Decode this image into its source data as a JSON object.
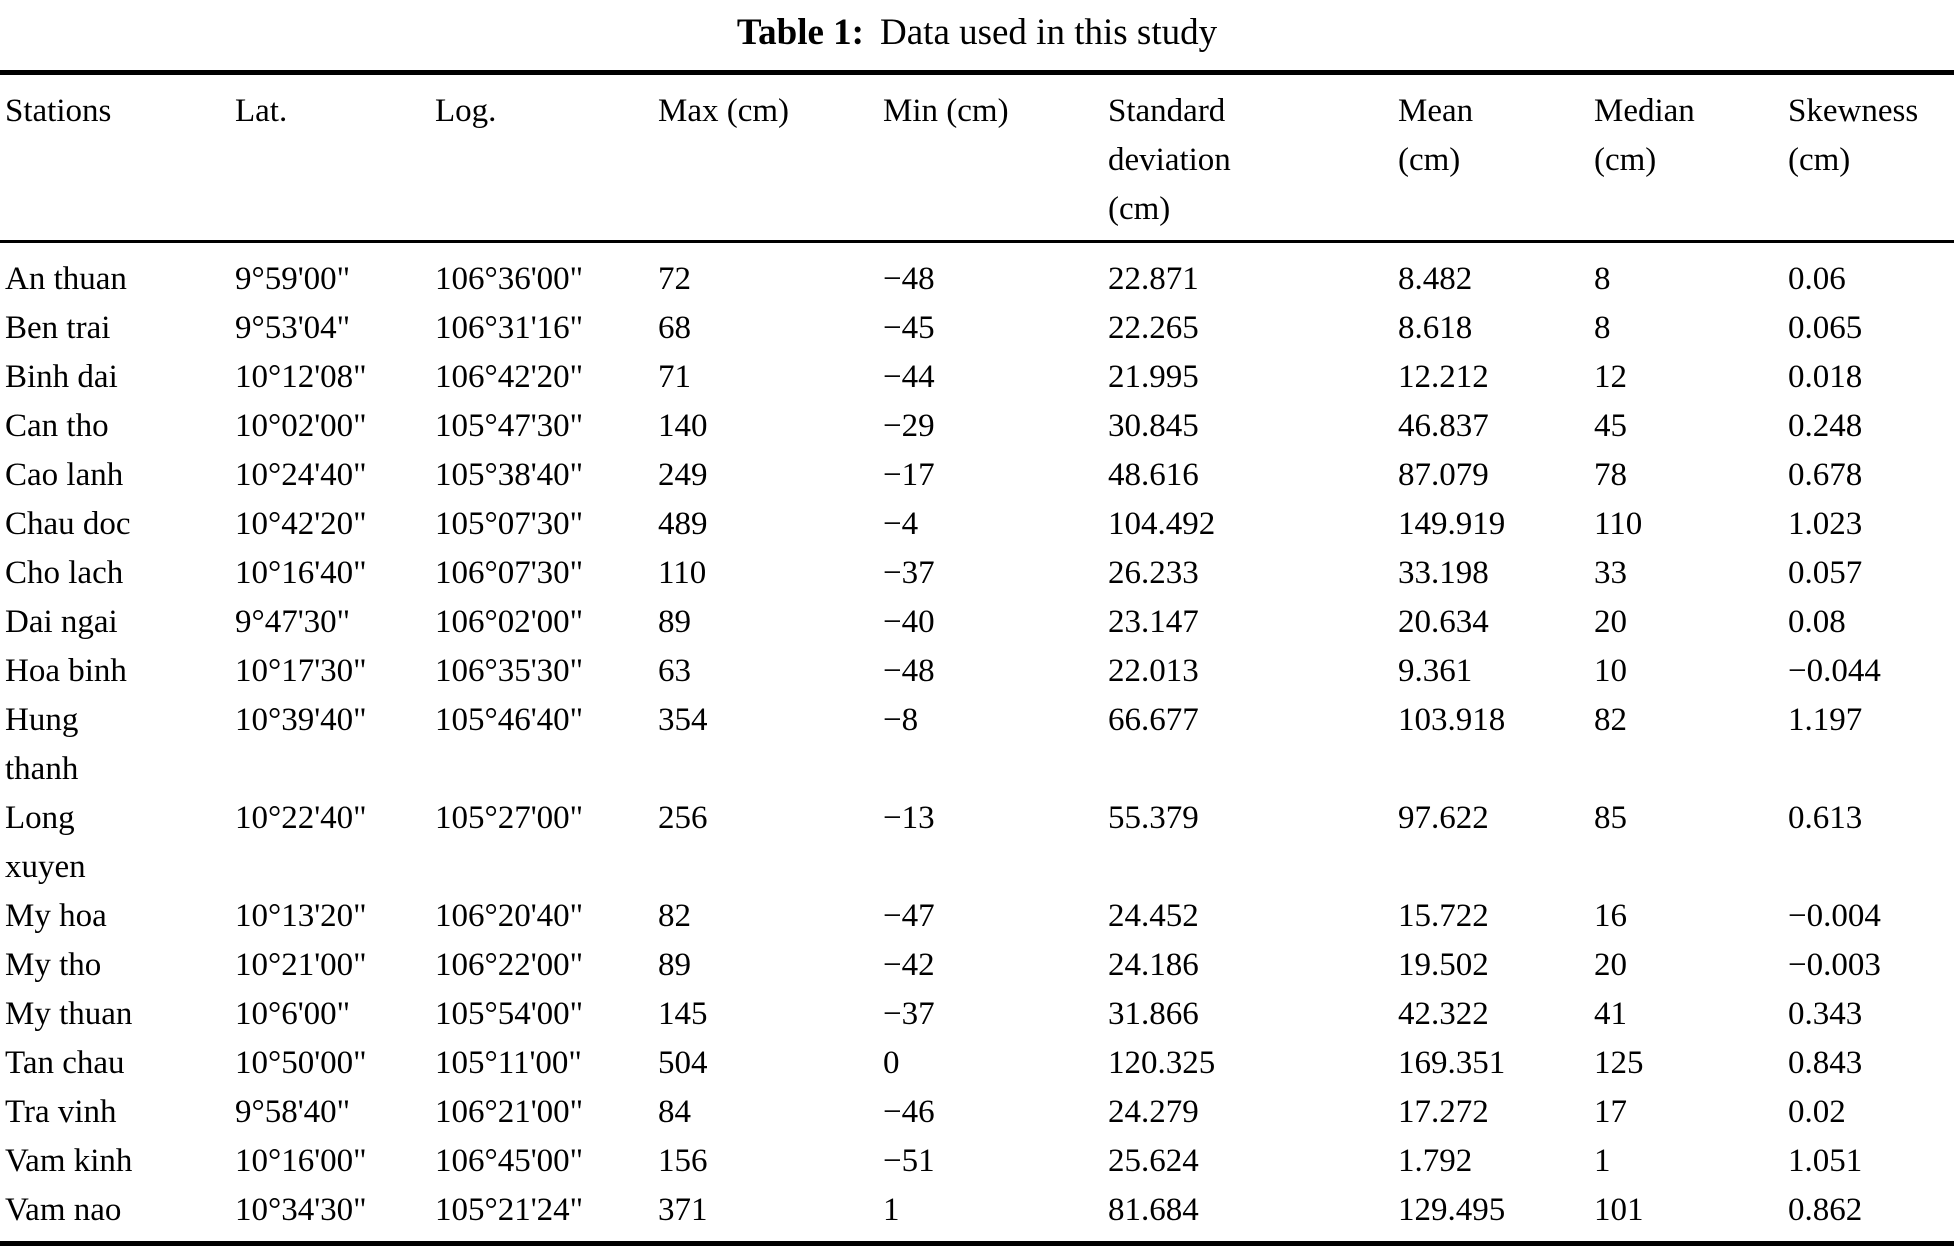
{
  "title": {
    "tag": "Table 1:",
    "text": "Data used in this study"
  },
  "table": {
    "headers": [
      "Stations",
      "Lat.",
      "Log.",
      "Max (cm)",
      "Min (cm)",
      "Standard\ndeviation\n(cm)",
      "Mean\n(cm)",
      "Median\n(cm)",
      "Skewness\n(cm)"
    ],
    "rows": [
      [
        "An thuan",
        "9°59'00\"",
        "106°36'00\"",
        "72",
        "−48",
        "22.871",
        "8.482",
        "8",
        "0.06"
      ],
      [
        "Ben trai",
        "9°53'04\"",
        "106°31'16\"",
        "68",
        "−45",
        "22.265",
        "8.618",
        "8",
        "0.065"
      ],
      [
        "Binh dai",
        "10°12'08\"",
        "106°42'20\"",
        "71",
        "−44",
        "21.995",
        "12.212",
        "12",
        "0.018"
      ],
      [
        "Can tho",
        "10°02'00\"",
        "105°47'30\"",
        "140",
        "−29",
        "30.845",
        "46.837",
        "45",
        "0.248"
      ],
      [
        "Cao lanh",
        "10°24'40\"",
        "105°38'40\"",
        "249",
        "−17",
        "48.616",
        "87.079",
        "78",
        "0.678"
      ],
      [
        "Chau doc",
        "10°42'20\"",
        "105°07'30\"",
        "489",
        "−4",
        "104.492",
        "149.919",
        "110",
        "1.023"
      ],
      [
        "Cho lach",
        "10°16'40\"",
        "106°07'30\"",
        "110",
        "−37",
        "26.233",
        "33.198",
        "33",
        "0.057"
      ],
      [
        "Dai ngai",
        "9°47'30\"",
        "106°02'00\"",
        "89",
        "−40",
        "23.147",
        "20.634",
        "20",
        "0.08"
      ],
      [
        "Hoa binh",
        "10°17'30\"",
        "106°35'30\"",
        "63",
        "−48",
        "22.013",
        "9.361",
        "10",
        "−0.044"
      ],
      [
        "Hung\nthanh",
        "10°39'40\"",
        "105°46'40\"",
        "354",
        "−8",
        "66.677",
        "103.918",
        "82",
        "1.197"
      ],
      [
        "Long\nxuyen",
        "10°22'40\"",
        "105°27'00\"",
        "256",
        "−13",
        "55.379",
        "97.622",
        "85",
        "0.613"
      ],
      [
        "My hoa",
        "10°13'20\"",
        "106°20'40\"",
        "82",
        "−47",
        "24.452",
        "15.722",
        "16",
        "−0.004"
      ],
      [
        "My tho",
        "10°21'00\"",
        "106°22'00\"",
        "89",
        "−42",
        "24.186",
        "19.502",
        "20",
        "−0.003"
      ],
      [
        "My thuan",
        "10°6'00\"",
        "105°54'00\"",
        "145",
        "−37",
        "31.866",
        "42.322",
        "41",
        "0.343"
      ],
      [
        "Tan chau",
        "10°50'00\"",
        "105°11'00\"",
        "504",
        "0",
        "120.325",
        "169.351",
        "125",
        "0.843"
      ],
      [
        "Tra vinh",
        "9°58'40\"",
        "106°21'00\"",
        "84",
        "−46",
        "24.279",
        "17.272",
        "17",
        "0.02"
      ],
      [
        "Vam kinh",
        "10°16'00\"",
        "106°45'00\"",
        "156",
        "−51",
        "25.624",
        "1.792",
        "1",
        "1.051"
      ],
      [
        "Vam nao",
        "10°34'30\"",
        "105°21'24\"",
        "371",
        "1",
        "81.684",
        "129.495",
        "101",
        "0.862"
      ]
    ]
  },
  "chart_data": {
    "type": "table",
    "title": "Table 1: Data used in this study",
    "columns": [
      "Stations",
      "Lat.",
      "Log.",
      "Max (cm)",
      "Min (cm)",
      "Standard deviation (cm)",
      "Mean (cm)",
      "Median (cm)",
      "Skewness (cm)"
    ],
    "rows": [
      [
        "An thuan",
        "9°59'00\"",
        "106°36'00\"",
        72,
        -48,
        22.871,
        8.482,
        8,
        0.06
      ],
      [
        "Ben trai",
        "9°53'04\"",
        "106°31'16\"",
        68,
        -45,
        22.265,
        8.618,
        8,
        0.065
      ],
      [
        "Binh dai",
        "10°12'08\"",
        "106°42'20\"",
        71,
        -44,
        21.995,
        12.212,
        12,
        0.018
      ],
      [
        "Can tho",
        "10°02'00\"",
        "105°47'30\"",
        140,
        -29,
        30.845,
        46.837,
        45,
        0.248
      ],
      [
        "Cao lanh",
        "10°24'40\"",
        "105°38'40\"",
        249,
        -17,
        48.616,
        87.079,
        78,
        0.678
      ],
      [
        "Chau doc",
        "10°42'20\"",
        "105°07'30\"",
        489,
        -4,
        104.492,
        149.919,
        110,
        1.023
      ],
      [
        "Cho lach",
        "10°16'40\"",
        "106°07'30\"",
        110,
        -37,
        26.233,
        33.198,
        33,
        0.057
      ],
      [
        "Dai ngai",
        "9°47'30\"",
        "106°02'00\"",
        89,
        -40,
        23.147,
        20.634,
        20,
        0.08
      ],
      [
        "Hoa binh",
        "10°17'30\"",
        "106°35'30\"",
        63,
        -48,
        22.013,
        9.361,
        10,
        -0.044
      ],
      [
        "Hung thanh",
        "10°39'40\"",
        "105°46'40\"",
        354,
        -8,
        66.677,
        103.918,
        82,
        1.197
      ],
      [
        "Long xuyen",
        "10°22'40\"",
        "105°27'00\"",
        256,
        -13,
        55.379,
        97.622,
        85,
        0.613
      ],
      [
        "My hoa",
        "10°13'20\"",
        "106°20'40\"",
        82,
        -47,
        24.452,
        15.722,
        16,
        -0.004
      ],
      [
        "My tho",
        "10°21'00\"",
        "106°22'00\"",
        89,
        -42,
        24.186,
        19.502,
        20,
        -0.003
      ],
      [
        "My thuan",
        "10°6'00\"",
        "105°54'00\"",
        145,
        -37,
        31.866,
        42.322,
        41,
        0.343
      ],
      [
        "Tan chau",
        "10°50'00\"",
        "105°11'00\"",
        504,
        0,
        120.325,
        169.351,
        125,
        0.843
      ],
      [
        "Tra vinh",
        "9°58'40\"",
        "106°21'00\"",
        84,
        -46,
        24.279,
        17.272,
        17,
        0.02
      ],
      [
        "Vam kinh",
        "10°16'00\"",
        "106°45'00\"",
        156,
        -51,
        25.624,
        1.792,
        1,
        1.051
      ],
      [
        "Vam nao",
        "10°34'30\"",
        "105°21'24\"",
        371,
        1,
        81.684,
        129.495,
        101,
        0.862
      ]
    ]
  }
}
